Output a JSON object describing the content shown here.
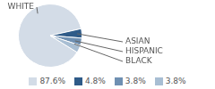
{
  "chart_data": {
    "type": "pie",
    "categories": [
      "WHITE",
      "ASIAN",
      "HISPANIC",
      "BLACK"
    ],
    "values": [
      87.6,
      4.8,
      3.8,
      3.8
    ],
    "value_labels": [
      "87.6%",
      "4.8%",
      "3.8%",
      "3.8%"
    ],
    "colors": [
      "#d3dce7",
      "#2f5b88",
      "#6f90b2",
      "#a8bed3"
    ],
    "legend": "bottom"
  }
}
